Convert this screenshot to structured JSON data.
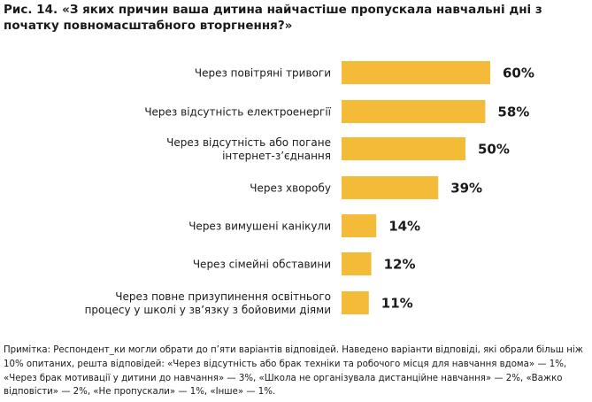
{
  "figure_label": "Рис. 14.",
  "title": "«З яких причин ваша дитина найчастіше пропускала навчальні дні з початку повномасштабного вторгнення?»",
  "note": "Примітка: Респондент_ки могли обрати до п’яти варіантів відповідей. Наведено варіанти відповіді, які обрали більш ніж 10% опитаних, решта відповідей: «Через відсутність або брак техніки та робочого місця для навчання вдома» — 1%, «Через брак мотивації у дитини до навчання» — 3%, «Школа не організувала дистанційне навчання» — 2%, «Важко відповісти» — 2%, «Не пропускали» — 1%, «Інше» — 1%.",
  "colors": {
    "bar": "#F4BB38",
    "text": "#1a1a1a"
  },
  "chart_data": {
    "type": "bar",
    "orientation": "horizontal",
    "categories": [
      [
        "Через повітряні тривоги"
      ],
      [
        "Через відсутність електроенергії"
      ],
      [
        "Через відсутність або погане",
        "інтернет-з’єднання"
      ],
      [
        "Через хворобу"
      ],
      [
        "Через вимушені канікули"
      ],
      [
        "Через сімейні обставини"
      ],
      [
        "Через повне призупинення освітнього",
        "процесу у школі у зв’язку з бойовими діями"
      ]
    ],
    "values": [
      60,
      58,
      50,
      39,
      14,
      12,
      11
    ],
    "value_labels": [
      "60%",
      "58%",
      "50%",
      "39%",
      "14%",
      "12%",
      "11%"
    ],
    "unit": "%",
    "xlim": [
      0,
      100
    ],
    "grid": false,
    "legend": "none"
  }
}
